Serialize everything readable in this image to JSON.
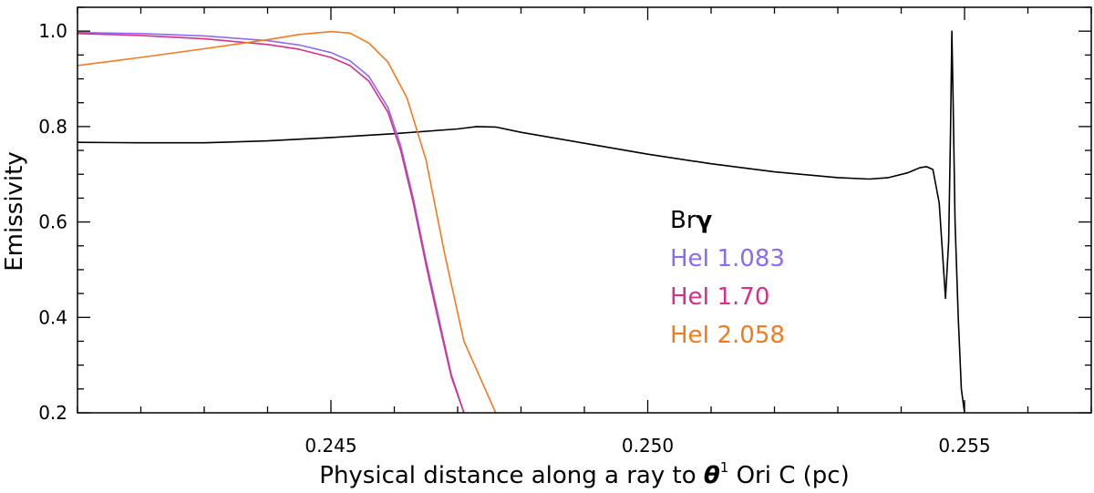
{
  "chart_data": {
    "type": "line",
    "title": "",
    "xlabel_prefix": "Physical distance along a ray to ",
    "xlabel_symbol": "θ",
    "xlabel_sup": "1",
    "xlabel_suffix": " Ori C (pc)",
    "ylabel": "Emissivity",
    "xlim": [
      0.241,
      0.257
    ],
    "ylim": [
      0.2,
      1.05
    ],
    "x_ticks": [
      0.245,
      0.25,
      0.255
    ],
    "x_tick_labels": [
      "0.245",
      "0.250",
      "0.255"
    ],
    "y_ticks": [
      0.2,
      0.4,
      0.6,
      0.8,
      1.0
    ],
    "y_tick_labels": [
      "0.2",
      "0.4",
      "0.6",
      "0.8",
      "1.0"
    ],
    "grid": false,
    "legend_position": "center-right",
    "series": [
      {
        "name": "Brγ",
        "legend_main": "Br",
        "legend_greek": "γ",
        "color": "#000000",
        "x": [
          0.241,
          0.242,
          0.243,
          0.244,
          0.245,
          0.246,
          0.247,
          0.2473,
          0.2476,
          0.248,
          0.249,
          0.25,
          0.251,
          0.252,
          0.253,
          0.2535,
          0.2538,
          0.2541,
          0.2543,
          0.2544,
          0.2545,
          0.2546,
          0.2547,
          0.25475,
          0.25478,
          0.2548,
          0.25482,
          0.25485,
          0.2549,
          0.25495,
          0.255
        ],
        "y": [
          0.767,
          0.766,
          0.766,
          0.77,
          0.777,
          0.785,
          0.795,
          0.8,
          0.799,
          0.788,
          0.765,
          0.742,
          0.722,
          0.705,
          0.693,
          0.69,
          0.693,
          0.703,
          0.714,
          0.716,
          0.71,
          0.64,
          0.44,
          0.56,
          0.8,
          1.0,
          0.85,
          0.6,
          0.4,
          0.25,
          0.2
        ]
      },
      {
        "name": "HeI 1.083",
        "legend_main": "HeI 1.083",
        "color": "#8a6cf0",
        "x": [
          0.241,
          0.242,
          0.243,
          0.244,
          0.2445,
          0.245,
          0.2453,
          0.2456,
          0.2459,
          0.2461,
          0.2463,
          0.2465,
          0.2467,
          0.2469,
          0.2471
        ],
        "y": [
          0.997,
          0.995,
          0.99,
          0.98,
          0.971,
          0.955,
          0.938,
          0.905,
          0.84,
          0.76,
          0.65,
          0.52,
          0.4,
          0.28,
          0.2
        ]
      },
      {
        "name": "HeI 1.70",
        "legend_main": "HeI 1.70",
        "color": "#d62f8c",
        "x": [
          0.241,
          0.242,
          0.243,
          0.244,
          0.2445,
          0.245,
          0.2453,
          0.2456,
          0.2459,
          0.2461,
          0.2463,
          0.2465,
          0.2467,
          0.2469,
          0.2471
        ],
        "y": [
          0.995,
          0.991,
          0.984,
          0.972,
          0.962,
          0.945,
          0.928,
          0.895,
          0.83,
          0.75,
          0.64,
          0.51,
          0.39,
          0.275,
          0.2
        ]
      },
      {
        "name": "HeI 2.058",
        "legend_main": "HeI 2.058",
        "color": "#f47a20",
        "x": [
          0.241,
          0.242,
          0.243,
          0.244,
          0.2445,
          0.245,
          0.2453,
          0.2456,
          0.2459,
          0.2462,
          0.2465,
          0.2468,
          0.2471,
          0.2474,
          0.2476
        ],
        "y": [
          0.928,
          0.945,
          0.963,
          0.982,
          0.993,
          0.999,
          0.996,
          0.975,
          0.935,
          0.86,
          0.73,
          0.53,
          0.35,
          0.26,
          0.2
        ]
      }
    ]
  }
}
